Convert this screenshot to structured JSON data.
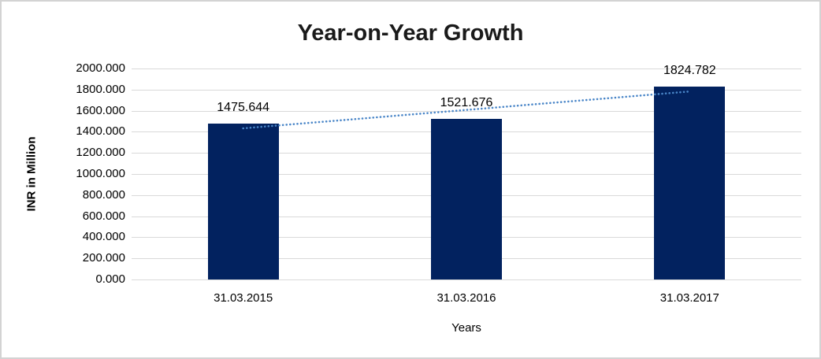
{
  "chart_data": {
    "type": "bar",
    "title": "Year-on-Year Growth",
    "xlabel": "Years",
    "ylabel": "INR in Million",
    "categories": [
      "31.03.2015",
      "31.03.2016",
      "31.03.2017"
    ],
    "values": [
      1475.644,
      1521.676,
      1824.782
    ],
    "data_labels": [
      "1475.644",
      "1521.676",
      "1824.782"
    ],
    "ylim": [
      0,
      2000
    ],
    "ytick_step": 200,
    "yticks": [
      "2000.000",
      "1800.000",
      "1600.000",
      "1400.000",
      "1200.000",
      "1000.000",
      "800.000",
      "600.000",
      "400.000",
      "200.000",
      "0.000"
    ],
    "grid": "horizontal",
    "legend": "none",
    "trendline": {
      "kind": "linear",
      "style": "dotted",
      "fitted_endpoints": [
        1432.798,
        1781.936
      ]
    },
    "colors": {
      "bar": "#02225f",
      "trendline": "#4a86c8",
      "gridline": "#d9d9d9",
      "title_text": "#1a1a1a",
      "label_text": "#000000",
      "background": "#ffffff",
      "frame_border": "#d3d3d3"
    }
  }
}
